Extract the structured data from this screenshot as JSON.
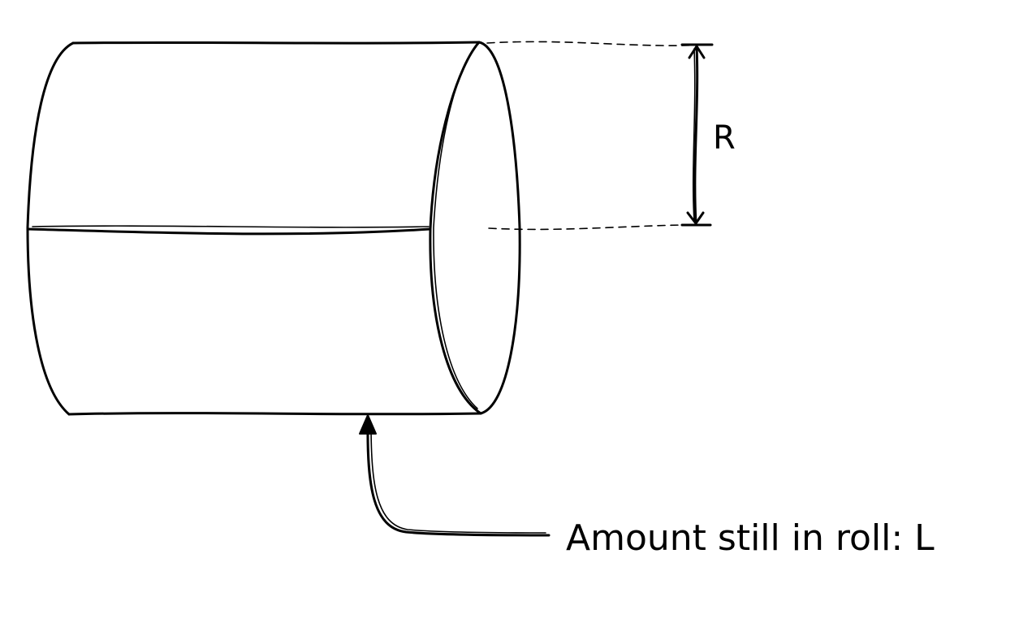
{
  "diagram": {
    "radius_label": "R",
    "callout_label": "Amount still in roll: L"
  }
}
